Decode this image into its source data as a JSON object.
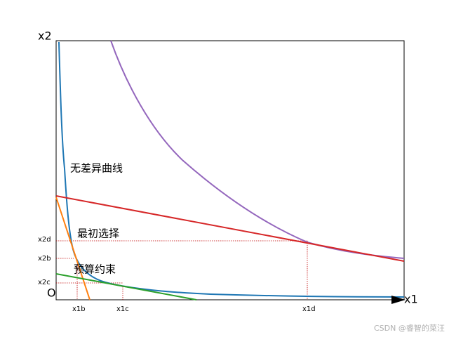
{
  "axes": {
    "y_label": "x2",
    "x_label": "x1",
    "origin": "O"
  },
  "annotations": {
    "indifference_curve": "无差异曲线",
    "initial_choice": "最初选择",
    "budget_constraint": "预算约束"
  },
  "y_ticks": [
    "x2d",
    "x2b",
    "x2c"
  ],
  "x_ticks": [
    "x1b",
    "x1c",
    "x1d"
  ],
  "watermark": "CSDN @睿智的菜汪"
}
